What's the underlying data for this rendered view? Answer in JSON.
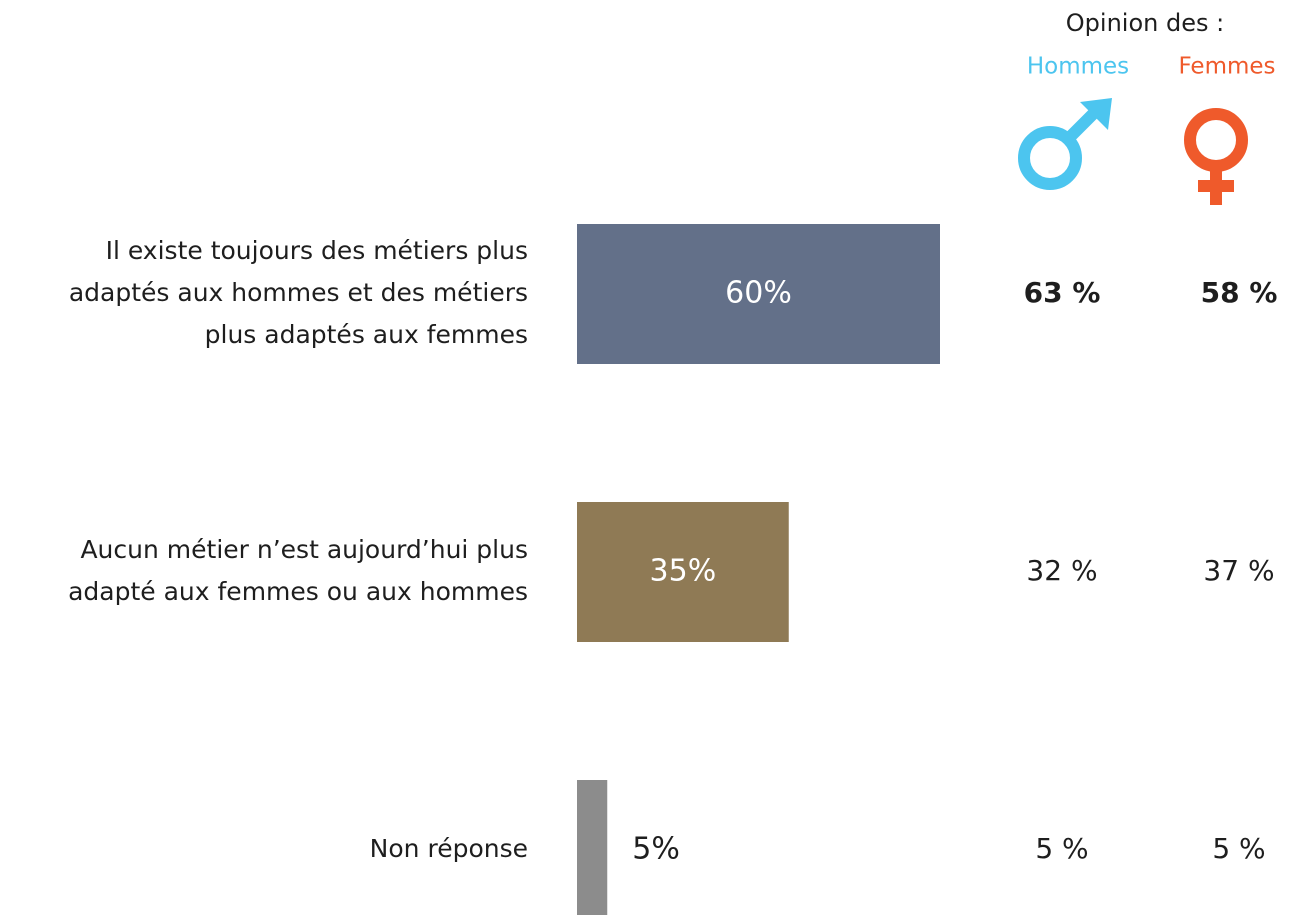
{
  "chart_data": {
    "type": "barh",
    "categories": [
      "Il existe toujours des métiers plus\nadaptés aux hommes et des métiers\nplus adaptés aux femmes",
      "Aucun métier n’est aujourd’hui plus\nadapté aux femmes ou aux hommes",
      "Non réponse"
    ],
    "values": [
      60,
      35,
      5
    ],
    "value_labels": [
      "60%",
      "35%",
      "5%"
    ],
    "colors": [
      "#637089",
      "#8f7a55",
      "#8c8c8c"
    ],
    "opinion": {
      "title": "Opinion des :",
      "groups": [
        {
          "name": "Hommes",
          "color": "#4cc5ef",
          "values": [
            63,
            32,
            5
          ],
          "value_labels": [
            "63 %",
            "32 %",
            "5 %"
          ]
        },
        {
          "name": "Femmes",
          "color": "#ef5a2b",
          "values": [
            58,
            37,
            5
          ],
          "value_labels": [
            "58 %",
            "37 %",
            "5 %"
          ]
        }
      ]
    }
  }
}
